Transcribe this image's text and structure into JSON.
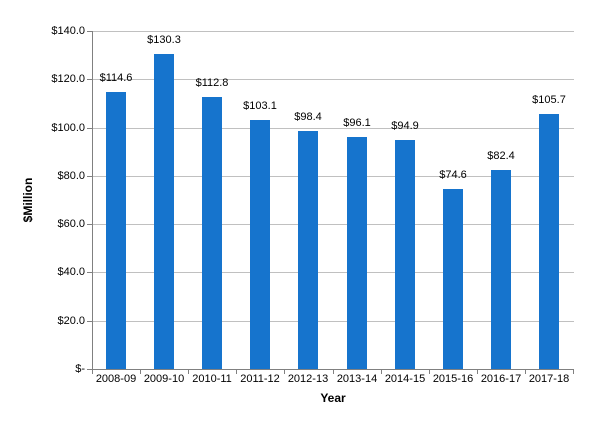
{
  "chart_data": {
    "type": "bar",
    "categories": [
      "2008-09",
      "2009-10",
      "2010-11",
      "2011-12",
      "2012-13",
      "2013-14",
      "2014-15",
      "2015-16",
      "2016-17",
      "2017-18"
    ],
    "values": [
      114.6,
      130.3,
      112.8,
      103.1,
      98.4,
      96.1,
      94.9,
      74.6,
      82.4,
      105.7
    ],
    "data_labels": [
      "$114.6",
      "$130.3",
      "$112.8",
      "$103.1",
      "$98.4",
      "$96.1",
      "$94.9",
      "$74.6",
      "$82.4",
      "$105.7"
    ],
    "xlabel": "Year",
    "ylabel": "$Million",
    "ylim": [
      0,
      140
    ],
    "ytick_step": 20,
    "ytick_labels": [
      "$-",
      "$20.0",
      "$40.0",
      "$60.0",
      "$80.0",
      "$100.0",
      "$120.0",
      "$140.0"
    ],
    "grid": "horizontal",
    "legend": "none",
    "colors": {
      "bar": "#1674CD",
      "gridline": "#c0c0c0",
      "axis": "#808080",
      "text": "#000000"
    }
  }
}
